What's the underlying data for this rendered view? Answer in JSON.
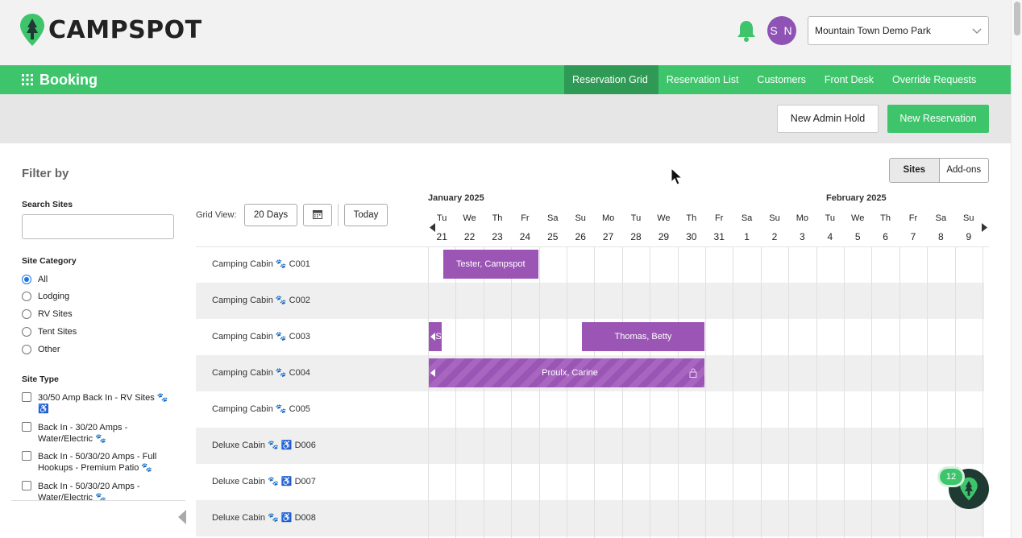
{
  "brand": {
    "name": "CAMPSPOT",
    "accent": "#3ec56c",
    "reservation_color": "#9b55b5"
  },
  "header": {
    "user_initials": "S N",
    "park": "Mountain Town Demo Park"
  },
  "nav": {
    "section": "Booking",
    "tabs": [
      {
        "label": "Reservation Grid",
        "active": true
      },
      {
        "label": "Reservation List",
        "active": false
      },
      {
        "label": "Customers",
        "active": false
      },
      {
        "label": "Front Desk",
        "active": false
      },
      {
        "label": "Override Requests",
        "active": false
      }
    ]
  },
  "actions": {
    "new_admin_hold": "New Admin Hold",
    "new_reservation": "New Reservation"
  },
  "filter": {
    "title": "Filter by",
    "search_label": "Search Sites",
    "search_value": "",
    "category_label": "Site Category",
    "categories": [
      {
        "label": "All",
        "checked": true
      },
      {
        "label": "Lodging",
        "checked": false
      },
      {
        "label": "RV Sites",
        "checked": false
      },
      {
        "label": "Tent Sites",
        "checked": false
      },
      {
        "label": "Other",
        "checked": false
      }
    ],
    "type_label": "Site Type",
    "types": [
      {
        "label": "30/50 Amp Back In - RV Sites 🐾 ♿",
        "checked": false
      },
      {
        "label": "Back In - 30/20 Amps - Water/Electric 🐾",
        "checked": false
      },
      {
        "label": "Back In - 50/30/20 Amps - Full Hookups - Premium Patio 🐾",
        "checked": false
      },
      {
        "label": "Back In - 50/30/20 Amps - Water/Electric 🐾",
        "checked": false
      }
    ]
  },
  "grid": {
    "view_label": "Grid View:",
    "days_button": "20 Days",
    "today_button": "Today",
    "toggle": {
      "sites": "Sites",
      "addons": "Add-ons"
    },
    "months": [
      {
        "label": "January 2025"
      },
      {
        "label": "February 2025"
      }
    ],
    "days": [
      {
        "dow": "Tu",
        "num": "21"
      },
      {
        "dow": "We",
        "num": "22"
      },
      {
        "dow": "Th",
        "num": "23"
      },
      {
        "dow": "Fr",
        "num": "24"
      },
      {
        "dow": "Sa",
        "num": "25"
      },
      {
        "dow": "Su",
        "num": "26"
      },
      {
        "dow": "Mo",
        "num": "27"
      },
      {
        "dow": "Tu",
        "num": "28"
      },
      {
        "dow": "We",
        "num": "29"
      },
      {
        "dow": "Th",
        "num": "30"
      },
      {
        "dow": "Fr",
        "num": "31"
      },
      {
        "dow": "Sa",
        "num": "1"
      },
      {
        "dow": "Su",
        "num": "2"
      },
      {
        "dow": "Mo",
        "num": "3"
      },
      {
        "dow": "Tu",
        "num": "4"
      },
      {
        "dow": "We",
        "num": "5"
      },
      {
        "dow": "Th",
        "num": "6"
      },
      {
        "dow": "Fr",
        "num": "7"
      },
      {
        "dow": "Sa",
        "num": "8"
      },
      {
        "dow": "Su",
        "num": "9"
      }
    ],
    "sites": [
      {
        "label": "Camping Cabin 🐾 C001"
      },
      {
        "label": "Camping Cabin 🐾 C002"
      },
      {
        "label": "Camping Cabin 🐾 C003"
      },
      {
        "label": "Camping Cabin 🐾 C004"
      },
      {
        "label": "Camping Cabin 🐾 C005"
      },
      {
        "label": "Deluxe Cabin 🐾 ♿ D006"
      },
      {
        "label": "Deluxe Cabin 🐾 ♿ D007"
      },
      {
        "label": "Deluxe Cabin 🐾 ♿ D008"
      }
    ],
    "reservations": [
      {
        "site": 0,
        "guest": "Tester, Campspot",
        "start": "Jan 21",
        "end": "Jan 24",
        "continues_left": false,
        "locked": false,
        "striped": false
      },
      {
        "site": 2,
        "guest": "S",
        "start": "Jan 21",
        "end": "Jan 21",
        "continues_left": true,
        "locked": false,
        "striped": false
      },
      {
        "site": 2,
        "guest": "Thomas, Betty",
        "start": "Jan 26",
        "end": "Jan 30",
        "continues_left": false,
        "locked": false,
        "striped": false
      },
      {
        "site": 3,
        "guest": "Proulx, Carine",
        "start": "Jan 21",
        "end": "Jan 30",
        "continues_left": true,
        "locked": true,
        "striped": true
      }
    ]
  },
  "chat": {
    "badge": "12"
  }
}
